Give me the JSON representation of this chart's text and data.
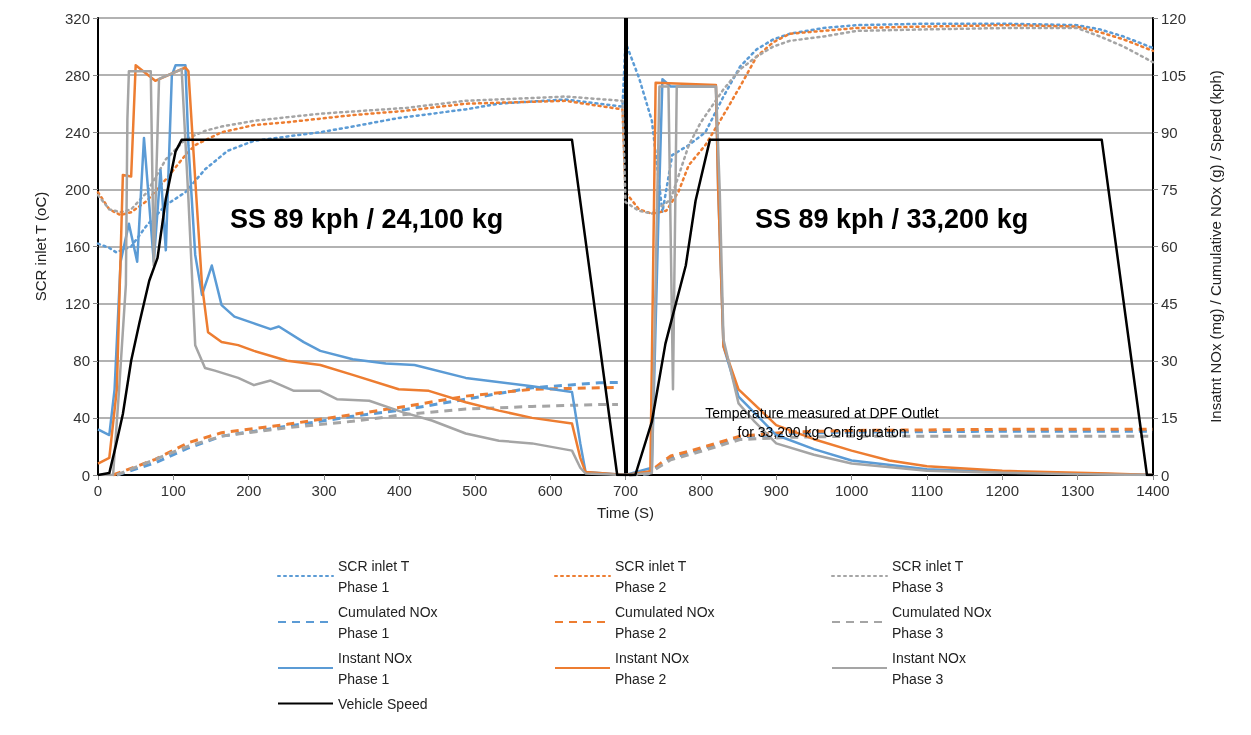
{
  "chart_data": {
    "type": "line",
    "xlabel": "Time (S)",
    "ylabel": "SCR inlet T (oC)",
    "y2label": "Insatnt NOx (mg) / Cumulative NOx (g) / Speed (kph)",
    "xlim": [
      0,
      1400
    ],
    "xticks": [
      0,
      100,
      200,
      300,
      400,
      500,
      600,
      700,
      800,
      900,
      1000,
      1100,
      1200,
      1300,
      1400
    ],
    "ylim": [
      0,
      320
    ],
    "yticks": [
      0,
      40,
      80,
      120,
      160,
      200,
      240,
      280,
      320
    ],
    "y2lim": [
      0,
      120
    ],
    "y2ticks": [
      0,
      15,
      30,
      45,
      60,
      75,
      90,
      105,
      120
    ],
    "grid": "y",
    "legend": "bottom",
    "marker": "none",
    "annotations": [
      "SS 89 kph / 24,100 kg",
      "SS 89 kph / 33,200 kg",
      "Temperature measured at DPF Outlet for 33,200 kg Configuration"
    ],
    "ref_lines": [
      {
        "axis": "x",
        "value": 700,
        "color": "#000000"
      }
    ],
    "series": [
      {
        "name": "SCR inlet T Phase 1",
        "color": "#5b9bd5",
        "line_style": "dotted",
        "x": [
          0,
          15,
          24,
          44,
          65,
          90,
          116,
          142,
          172,
          207,
          251,
          295,
          338,
          399,
          488,
          532,
          620,
          696,
          700,
          718,
          735,
          749,
          762,
          784,
          806,
          830,
          852,
          874,
          896,
          918,
          963,
          1007,
          1095,
          1206,
          1299,
          1330,
          1361,
          1400
        ],
        "values": [
          162,
          159,
          156,
          160,
          175,
          189,
          198,
          214,
          227,
          234,
          237,
          240,
          244,
          250,
          256,
          260,
          263,
          258,
          303,
          278,
          248,
          184,
          224,
          231,
          240,
          265,
          286,
          298,
          305,
          309,
          313,
          315,
          316,
          316,
          315,
          312,
          307,
          299
        ]
      },
      {
        "name": "SCR inlet T Phase 2",
        "color": "#ed7d31",
        "line_style": "dotted",
        "x": [
          0,
          15,
          30,
          44,
          65,
          90,
          116,
          129,
          164,
          207,
          251,
          338,
          408,
          488,
          620,
          696,
          700,
          718,
          735,
          754,
          770,
          784,
          806,
          830,
          852,
          874,
          896,
          918,
          963,
          1007,
          1095,
          1206,
          1299,
          1330,
          1361,
          1400
        ],
        "values": [
          198,
          186,
          182,
          184,
          192,
          207,
          224,
          231,
          240,
          245,
          247,
          252,
          255,
          260,
          262,
          256,
          198,
          186,
          183,
          185,
          198,
          217,
          231,
          252,
          272,
          293,
          303,
          309,
          311,
          313,
          314,
          315,
          314,
          310,
          305,
          297
        ]
      },
      {
        "name": "SCR inlet T Phase 3",
        "color": "#a5a5a5",
        "line_style": "dotted",
        "x": [
          0,
          15,
          30,
          44,
          65,
          90,
          116,
          142,
          164,
          207,
          295,
          408,
          488,
          620,
          696,
          700,
          718,
          735,
          760,
          784,
          800,
          830,
          852,
          874,
          896,
          918,
          963,
          1007,
          1095,
          1206,
          1299,
          1330,
          1361,
          1400
        ],
        "values": [
          196,
          186,
          184,
          186,
          198,
          221,
          235,
          241,
          244,
          248,
          253,
          257,
          262,
          265,
          262,
          191,
          185,
          183,
          193,
          231,
          247,
          270,
          284,
          293,
          300,
          304,
          307,
          311,
          312,
          313,
          313,
          307,
          300,
          289
        ]
      },
      {
        "name": "Cumulated NOx Phase 1",
        "color": "#5b9bd5",
        "line_style": "dashed",
        "axis": "y2",
        "x": [
          25,
          76,
          120,
          164,
          251,
          338,
          408,
          488,
          576,
          665,
          690,
          698,
          705,
          730,
          760,
          786,
          852,
          918,
          1007,
          1206,
          1400
        ],
        "values": [
          0,
          3.2,
          7.1,
          10.2,
          12.8,
          15.4,
          17.2,
          19.9,
          22.9,
          24.2,
          24.3,
          null,
          0,
          0.3,
          4.5,
          5.8,
          10,
          10.9,
          11.3,
          11.5,
          11.5
        ]
      },
      {
        "name": "Cumulated NOx Phase 2",
        "color": "#ed7d31",
        "line_style": "dashed",
        "axis": "y2",
        "x": [
          20,
          76,
          120,
          164,
          251,
          338,
          408,
          488,
          576,
          665,
          690,
          698,
          705,
          730,
          760,
          786,
          852,
          918,
          1007,
          1206,
          1400
        ],
        "values": [
          0,
          4.1,
          8.5,
          11.1,
          13.3,
          15.9,
          18,
          20.7,
          22.5,
          22.9,
          23,
          null,
          0,
          0.6,
          5,
          6.3,
          10.2,
          11.3,
          11.7,
          12,
          12
        ]
      },
      {
        "name": "Cumulated NOx Phase 3",
        "color": "#a5a5a5",
        "line_style": "dashed",
        "axis": "y2",
        "x": [
          25,
          76,
          120,
          164,
          251,
          338,
          408,
          488,
          576,
          665,
          690,
          698,
          705,
          730,
          760,
          786,
          852,
          918,
          1007,
          1206,
          1400
        ],
        "values": [
          0,
          4.1,
          7.6,
          10.2,
          12.4,
          14.1,
          15.9,
          17.3,
          18,
          18.5,
          18.5,
          null,
          0,
          0.3,
          4,
          5.4,
          9.3,
          9.9,
          10.2,
          10.2,
          10.2
        ]
      },
      {
        "name": "Instant NOx Phase 1",
        "color": "#5b9bd5",
        "line_style": "solid",
        "axis": "y2",
        "x": [
          0,
          15,
          22,
          30,
          41,
          52,
          61,
          74,
          83,
          90,
          98,
          103,
          116,
          120,
          129,
          138,
          151,
          164,
          181,
          207,
          229,
          240,
          273,
          295,
          338,
          382,
          420,
          488,
          576,
          629,
          640,
          647,
          700,
          735,
          744,
          749,
          760,
          820,
          823,
          830,
          850,
          900,
          950,
          1000,
          1100,
          1200,
          1300,
          1400
        ],
        "values": [
          12,
          10.5,
          22.5,
          56,
          66,
          56,
          88.5,
          56,
          80,
          59,
          105,
          107.6,
          107.6,
          86.6,
          57.8,
          47.3,
          55,
          44.6,
          41.6,
          39.8,
          38.3,
          39,
          34.9,
          32.6,
          30.4,
          29.3,
          28.9,
          25.5,
          23.3,
          21.8,
          8.3,
          0.8,
          0,
          1.9,
          69.8,
          103.9,
          102,
          102,
          75,
          33.8,
          20.6,
          10.5,
          6.8,
          3.8,
          1.5,
          0.8,
          0.4,
          0
        ]
      },
      {
        "name": "Instant NOx Phase 2",
        "color": "#ed7d31",
        "line_style": "solid",
        "axis": "y2",
        "x": [
          0,
          15,
          25,
          33,
          44,
          50,
          76,
          116,
          120,
          129,
          138,
          146,
          164,
          186,
          207,
          251,
          295,
          338,
          399,
          439,
          488,
          532,
          576,
          629,
          640,
          647,
          700,
          733,
          740,
          820,
          823,
          830,
          850,
          900,
          950,
          1000,
          1050,
          1100,
          1200,
          1300,
          1340,
          1400
        ],
        "values": [
          3,
          4.5,
          22.5,
          78.8,
          78.4,
          107.6,
          103.5,
          107,
          106,
          77.6,
          49.9,
          37.5,
          34.9,
          34.1,
          32.6,
          30,
          28.9,
          26.3,
          22.5,
          22.1,
          19.1,
          16.9,
          15,
          13.5,
          4.5,
          0.8,
          0,
          1,
          103,
          102.4,
          75,
          33.8,
          22.5,
          13.1,
          9.4,
          6.4,
          3.8,
          2.3,
          1.1,
          0.6,
          0.4,
          0
        ]
      },
      {
        "name": "Instant NOx Phase 3",
        "color": "#a5a5a5",
        "line_style": "solid",
        "axis": "y2",
        "x": [
          0,
          20,
          28,
          37,
          39,
          41,
          70,
          74,
          81,
          111,
          120,
          129,
          142,
          155,
          186,
          207,
          229,
          260,
          295,
          317,
          360,
          404,
          443,
          488,
          532,
          576,
          629,
          640,
          647,
          700,
          735,
          745,
          757,
          763,
          768,
          820,
          825,
          830,
          850,
          870,
          900,
          950,
          1000,
          1100,
          1200,
          1300,
          1400
        ],
        "values": [
          0,
          0,
          22.5,
          50,
          93.4,
          106,
          106,
          55,
          104,
          106.5,
          72.4,
          34.1,
          28.1,
          27.4,
          25.5,
          23.6,
          24.8,
          22.1,
          22.1,
          19.9,
          19.5,
          16.5,
          14.3,
          10.9,
          9,
          8.3,
          6.4,
          1.9,
          0.4,
          0,
          0.5,
          102,
          102,
          22.5,
          102,
          102,
          75,
          35.6,
          18.8,
          14.3,
          8.3,
          5.3,
          3,
          1.1,
          0.6,
          0.2,
          0
        ]
      },
      {
        "name": "Vehicle Speed",
        "color": "#000000",
        "line_style": "solid",
        "axis": "y2",
        "x": [
          0,
          15,
          24,
          33,
          44,
          55,
          68,
          79,
          90,
          103,
          111,
          629,
          689,
          713,
          735,
          753,
          780,
          793,
          812,
          1332,
          1392,
          1400
        ],
        "values": [
          0,
          0.5,
          8,
          16,
          30,
          40,
          51,
          57,
          72.5,
          85,
          88,
          88,
          0,
          0,
          14,
          34.5,
          55,
          72,
          88,
          88,
          0,
          0
        ]
      }
    ]
  }
}
